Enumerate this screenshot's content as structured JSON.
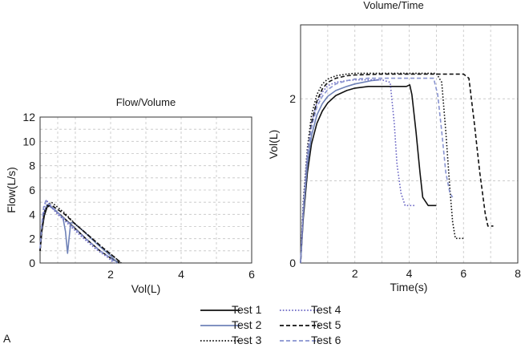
{
  "panel_label": "A",
  "chart_data": [
    {
      "type": "line",
      "title": "Flow/Volume",
      "xlabel": "Vol(L)",
      "ylabel": "Flow(L/s)",
      "xlim": [
        0,
        6
      ],
      "ylim": [
        0,
        12
      ],
      "xticks": [
        2,
        4,
        6
      ],
      "yticks": [
        0,
        2,
        4,
        6,
        8,
        10,
        12
      ],
      "xgrid": [
        0.5,
        1,
        2,
        3,
        4,
        5,
        6
      ],
      "ygrid": [
        1,
        2,
        3,
        4,
        5,
        6,
        7,
        8,
        9,
        10,
        11,
        12
      ],
      "grid": true,
      "series": [
        {
          "name": "Test 1",
          "x": [
            0,
            0.05,
            0.12,
            0.2,
            0.28,
            0.4,
            0.6,
            0.9,
            1.3,
            1.7,
            2.0,
            2.25
          ],
          "y": [
            1.0,
            2.6,
            3.9,
            4.6,
            4.7,
            4.4,
            3.9,
            3.1,
            2.0,
            1.0,
            0.4,
            0.0
          ]
        },
        {
          "name": "Test 2",
          "x": [
            0,
            0.05,
            0.12,
            0.2,
            0.3,
            0.45,
            0.65,
            0.72,
            0.78,
            0.82,
            0.87,
            0.95,
            1.2,
            1.6,
            2.0,
            2.2
          ],
          "y": [
            1.2,
            2.8,
            4.2,
            4.8,
            4.6,
            4.3,
            3.7,
            2.6,
            0.8,
            2.0,
            3.3,
            3.3,
            2.7,
            1.6,
            0.6,
            0.0
          ]
        },
        {
          "name": "Test 3",
          "x": [
            0,
            0.05,
            0.12,
            0.22,
            0.32,
            0.45,
            0.7,
            1.0,
            1.4,
            1.8,
            2.1,
            2.3
          ],
          "y": [
            1.0,
            2.8,
            4.2,
            4.8,
            5.0,
            4.7,
            4.1,
            3.2,
            2.2,
            1.2,
            0.5,
            0.0
          ]
        },
        {
          "name": "Test 4",
          "x": [
            0,
            0.05,
            0.12,
            0.18,
            0.25,
            0.35,
            0.5,
            0.8,
            1.2,
            1.6,
            1.9,
            2.1
          ],
          "y": [
            1.1,
            3.0,
            4.6,
            5.2,
            4.8,
            4.5,
            4.0,
            3.2,
            2.1,
            1.1,
            0.5,
            0.0
          ]
        },
        {
          "name": "Test 5",
          "x": [
            0,
            0.05,
            0.12,
            0.2,
            0.3,
            0.45,
            0.7,
            1.0,
            1.4,
            1.8,
            2.1,
            2.3
          ],
          "y": [
            1.0,
            2.7,
            4.0,
            4.6,
            4.8,
            4.5,
            4.0,
            3.2,
            2.2,
            1.2,
            0.5,
            0.0
          ]
        },
        {
          "name": "Test 6",
          "x": [
            0,
            0.05,
            0.1,
            0.16,
            0.24,
            0.35,
            0.55,
            0.85,
            1.25,
            1.65,
            1.95,
            2.15
          ],
          "y": [
            1.2,
            3.2,
            4.6,
            5.1,
            4.9,
            4.6,
            4.0,
            3.2,
            2.1,
            1.1,
            0.5,
            0.0
          ]
        }
      ]
    },
    {
      "type": "line",
      "title": "Volume/Time",
      "xlabel": "Time(s)",
      "ylabel": "Vol(L)",
      "xlim": [
        0,
        8
      ],
      "ylim": [
        0,
        2.9
      ],
      "xticks": [
        2,
        4,
        6,
        8
      ],
      "yticks": [
        0,
        2
      ],
      "xgrid": [
        1,
        2,
        3,
        4,
        5,
        6,
        7,
        8
      ],
      "ygrid": [
        1,
        2
      ],
      "grid": true,
      "series": [
        {
          "name": "Test 1",
          "x": [
            0,
            0.1,
            0.25,
            0.4,
            0.6,
            0.8,
            1.0,
            1.3,
            1.7,
            2.0,
            2.5,
            3.0,
            3.5,
            3.9,
            4.02,
            4.1,
            4.25,
            4.4,
            4.5,
            4.7,
            5.0
          ],
          "y": [
            0,
            0.55,
            1.1,
            1.45,
            1.7,
            1.85,
            1.95,
            2.04,
            2.1,
            2.13,
            2.15,
            2.15,
            2.15,
            2.15,
            2.17,
            2.05,
            1.6,
            1.1,
            0.8,
            0.7,
            0.7
          ]
        },
        {
          "name": "Test 2",
          "x": [
            0,
            0.1,
            0.25,
            0.4,
            0.6,
            0.8,
            1.0,
            1.3,
            1.7,
            2.0,
            2.3,
            2.6,
            2.9
          ],
          "y": [
            0,
            0.6,
            1.2,
            1.55,
            1.8,
            1.94,
            2.03,
            2.1,
            2.15,
            2.18,
            2.2,
            2.22,
            2.23
          ]
        },
        {
          "name": "Test 3",
          "x": [
            0,
            0.1,
            0.25,
            0.4,
            0.6,
            0.8,
            1.0,
            1.3,
            1.7,
            2.0,
            2.5,
            3.0,
            4.0,
            5.0,
            5.2,
            5.35,
            5.5,
            5.6,
            5.7,
            6.0
          ],
          "y": [
            0,
            0.75,
            1.4,
            1.8,
            2.05,
            2.18,
            2.24,
            2.28,
            2.3,
            2.31,
            2.31,
            2.31,
            2.31,
            2.31,
            2.2,
            1.6,
            0.9,
            0.5,
            0.3,
            0.3
          ]
        },
        {
          "name": "Test 4",
          "x": [
            0,
            0.1,
            0.25,
            0.4,
            0.6,
            0.8,
            1.0,
            1.3,
            1.7,
            2.0,
            2.5,
            3.0,
            3.3,
            3.45,
            3.55,
            3.7,
            3.85,
            4.2
          ],
          "y": [
            0,
            0.7,
            1.35,
            1.7,
            1.95,
            2.08,
            2.16,
            2.2,
            2.22,
            2.23,
            2.23,
            2.23,
            2.2,
            1.7,
            1.2,
            0.85,
            0.7,
            0.7
          ]
        },
        {
          "name": "Test 5",
          "x": [
            0,
            0.1,
            0.25,
            0.4,
            0.6,
            0.8,
            1.0,
            1.3,
            1.7,
            2.0,
            3.0,
            4.0,
            5.0,
            6.0,
            6.2,
            6.4,
            6.6,
            6.8,
            6.9,
            7.1
          ],
          "y": [
            0,
            0.65,
            1.3,
            1.7,
            1.97,
            2.12,
            2.2,
            2.25,
            2.28,
            2.29,
            2.3,
            2.3,
            2.3,
            2.3,
            2.25,
            1.7,
            1.1,
            0.6,
            0.45,
            0.45
          ]
        },
        {
          "name": "Test 6",
          "x": [
            0,
            0.1,
            0.25,
            0.4,
            0.6,
            0.8,
            1.0,
            1.3,
            1.7,
            2.0,
            2.5,
            3.0,
            4.0,
            4.9,
            5.05,
            5.2,
            5.35,
            5.5,
            5.6
          ],
          "y": [
            0,
            0.65,
            1.3,
            1.65,
            1.9,
            2.03,
            2.11,
            2.18,
            2.22,
            2.24,
            2.25,
            2.25,
            2.25,
            2.25,
            2.05,
            1.6,
            1.1,
            0.85,
            0.8
          ]
        }
      ]
    }
  ],
  "legend": [
    {
      "label": "Test 1",
      "color": "#111111",
      "dash": "solid"
    },
    {
      "label": "Test 2",
      "color": "#6f82b8",
      "dash": "solid"
    },
    {
      "label": "Test 3",
      "color": "#111111",
      "dash": "dotted"
    },
    {
      "label": "Test 4",
      "color": "#6a66c4",
      "dash": "dotted"
    },
    {
      "label": "Test 5",
      "color": "#111111",
      "dash": "dashed"
    },
    {
      "label": "Test 6",
      "color": "#8893d0",
      "dash": "dashed"
    }
  ]
}
